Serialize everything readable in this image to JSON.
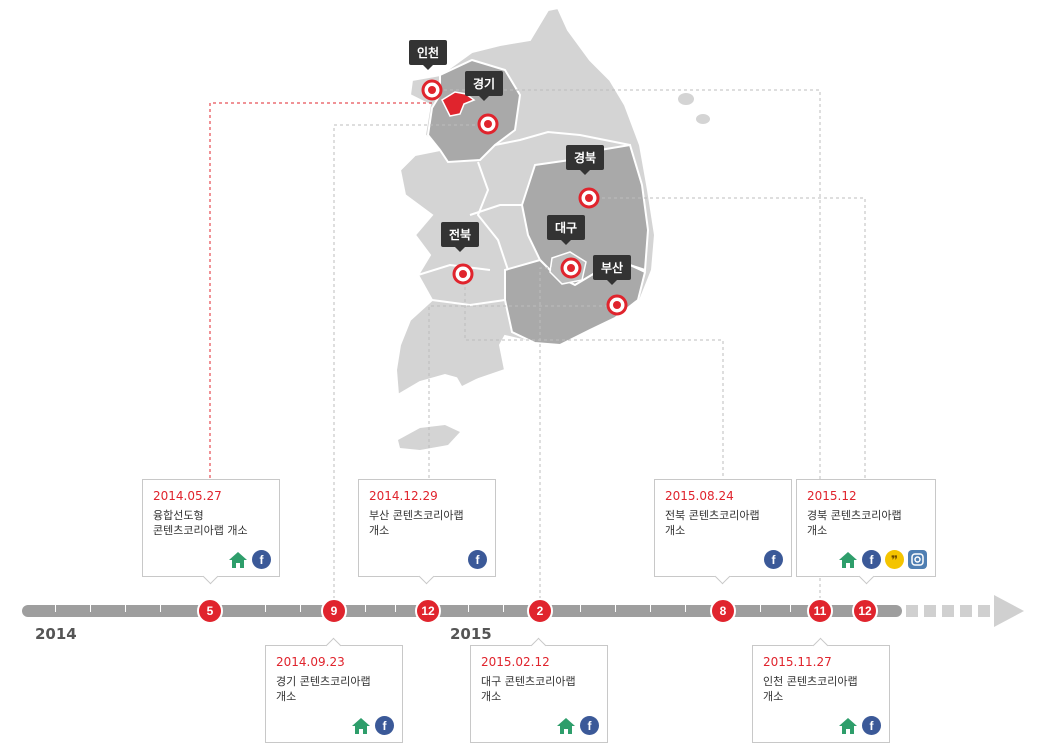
{
  "timeline": {
    "years": [
      {
        "label": "2014"
      },
      {
        "label": "2015"
      }
    ],
    "months": [
      "5",
      "9",
      "12",
      "2",
      "8",
      "11",
      "12"
    ]
  },
  "regions": [
    {
      "name": "인천"
    },
    {
      "name": "경기"
    },
    {
      "name": "경북"
    },
    {
      "name": "대구"
    },
    {
      "name": "부산"
    },
    {
      "name": "전북"
    }
  ],
  "events": [
    {
      "date": "2014.05.27",
      "desc": "융합선도형\n콘텐츠코리아랩 개소",
      "icons": [
        "home-icon",
        "facebook-icon"
      ]
    },
    {
      "date": "2014.09.23",
      "desc": "경기 콘텐츠코리아랩\n개소",
      "icons": [
        "home-icon",
        "facebook-icon"
      ]
    },
    {
      "date": "2014.12.29",
      "desc": "부산 콘텐츠코리아랩\n개소",
      "icons": [
        "facebook-icon"
      ]
    },
    {
      "date": "2015.02.12",
      "desc": "대구 콘텐츠코리아랩\n개소",
      "icons": [
        "home-icon",
        "facebook-icon"
      ]
    },
    {
      "date": "2015.08.24",
      "desc": "전북 콘텐츠코리아랩\n개소",
      "icons": [
        "facebook-icon"
      ]
    },
    {
      "date": "2015.11.27",
      "desc": "인천 콘텐츠코리아랩\n개소",
      "icons": [
        "home-icon",
        "facebook-icon"
      ]
    },
    {
      "date": "2015.12",
      "desc": "경북 콘텐츠코리아랩\n개소",
      "icons": [
        "home-icon",
        "facebook-icon",
        "kakaostory-icon",
        "instagram-icon"
      ]
    }
  ],
  "colors": {
    "accent": "#e0242d",
    "track": "#9e9e9e",
    "map_light": "#d4d4d4",
    "map_dark": "#a9a9a9",
    "label_bg": "#333333"
  }
}
